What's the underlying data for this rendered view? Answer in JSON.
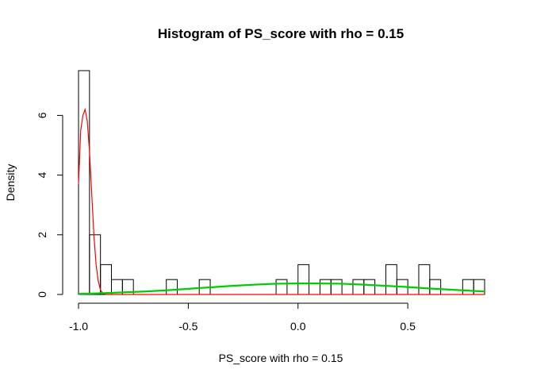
{
  "chart_data": {
    "type": "bar",
    "title": "Histogram of PS_score with rho = 0.15",
    "xlabel": "PS_score with rho = 0.15",
    "ylabel": "Density",
    "xlim": [
      -1.0,
      0.85
    ],
    "ylim": [
      0,
      7.5
    ],
    "x_ticks": [
      -1.0,
      -0.5,
      0.0,
      0.5
    ],
    "x_tick_labels": [
      "-1.0",
      "-0.5",
      "0.0",
      "0.5"
    ],
    "y_ticks": [
      0,
      2,
      4,
      6
    ],
    "y_tick_labels": [
      "0",
      "2",
      "4",
      "6"
    ],
    "bin_width": 0.05,
    "bins": [
      {
        "start": -1.0,
        "end": -0.95,
        "density": 7.5
      },
      {
        "start": -0.95,
        "end": -0.9,
        "density": 2.0
      },
      {
        "start": -0.9,
        "end": -0.85,
        "density": 1.0
      },
      {
        "start": -0.85,
        "end": -0.8,
        "density": 0.5
      },
      {
        "start": -0.8,
        "end": -0.75,
        "density": 0.5
      },
      {
        "start": -0.6,
        "end": -0.55,
        "density": 0.5
      },
      {
        "start": -0.45,
        "end": -0.4,
        "density": 0.5
      },
      {
        "start": -0.1,
        "end": -0.05,
        "density": 0.5
      },
      {
        "start": -0.0,
        "end": 0.05,
        "density": 1.0
      },
      {
        "start": 0.1,
        "end": 0.15,
        "density": 0.5
      },
      {
        "start": 0.15,
        "end": 0.2,
        "density": 0.5
      },
      {
        "start": 0.25,
        "end": 0.3,
        "density": 0.5
      },
      {
        "start": 0.3,
        "end": 0.35,
        "density": 0.5
      },
      {
        "start": 0.4,
        "end": 0.45,
        "density": 1.0
      },
      {
        "start": 0.45,
        "end": 0.5,
        "density": 0.5
      },
      {
        "start": 0.55,
        "end": 0.6,
        "density": 1.0
      },
      {
        "start": 0.6,
        "end": 0.65,
        "density": 0.5
      },
      {
        "start": 0.75,
        "end": 0.8,
        "density": 0.5
      },
      {
        "start": 0.8,
        "end": 0.85,
        "density": 0.5
      }
    ],
    "series": [
      {
        "color": "#ff0000",
        "x": [
          -1.0,
          -0.99,
          -0.98,
          -0.97,
          -0.96,
          -0.95,
          -0.94,
          -0.93,
          -0.92,
          -0.91,
          -0.9,
          -0.89,
          -0.88,
          -0.87,
          -0.86,
          -0.85,
          -0.8,
          -0.6,
          -0.4,
          -0.2,
          0.0,
          0.2,
          0.4,
          0.6,
          0.85
        ],
        "y": [
          3.7,
          5.5,
          6.0,
          6.2,
          5.8,
          4.8,
          3.4,
          2.0,
          1.0,
          0.45,
          0.15,
          0.05,
          0.02,
          0.0,
          0.0,
          0.0,
          0.0,
          0.0,
          0.0,
          0.0,
          0.0,
          0.0,
          0.0,
          0.0,
          0.0
        ]
      },
      {
        "color": "#00cd00",
        "x": [
          -1.0,
          -0.9,
          -0.8,
          -0.7,
          -0.6,
          -0.5,
          -0.4,
          -0.3,
          -0.2,
          -0.1,
          0.0,
          0.1,
          0.2,
          0.3,
          0.4,
          0.5,
          0.6,
          0.7,
          0.8,
          0.85
        ],
        "y": [
          0.02,
          0.04,
          0.07,
          0.1,
          0.14,
          0.19,
          0.24,
          0.29,
          0.33,
          0.36,
          0.37,
          0.37,
          0.36,
          0.33,
          0.29,
          0.25,
          0.2,
          0.16,
          0.12,
          0.1
        ]
      }
    ]
  }
}
